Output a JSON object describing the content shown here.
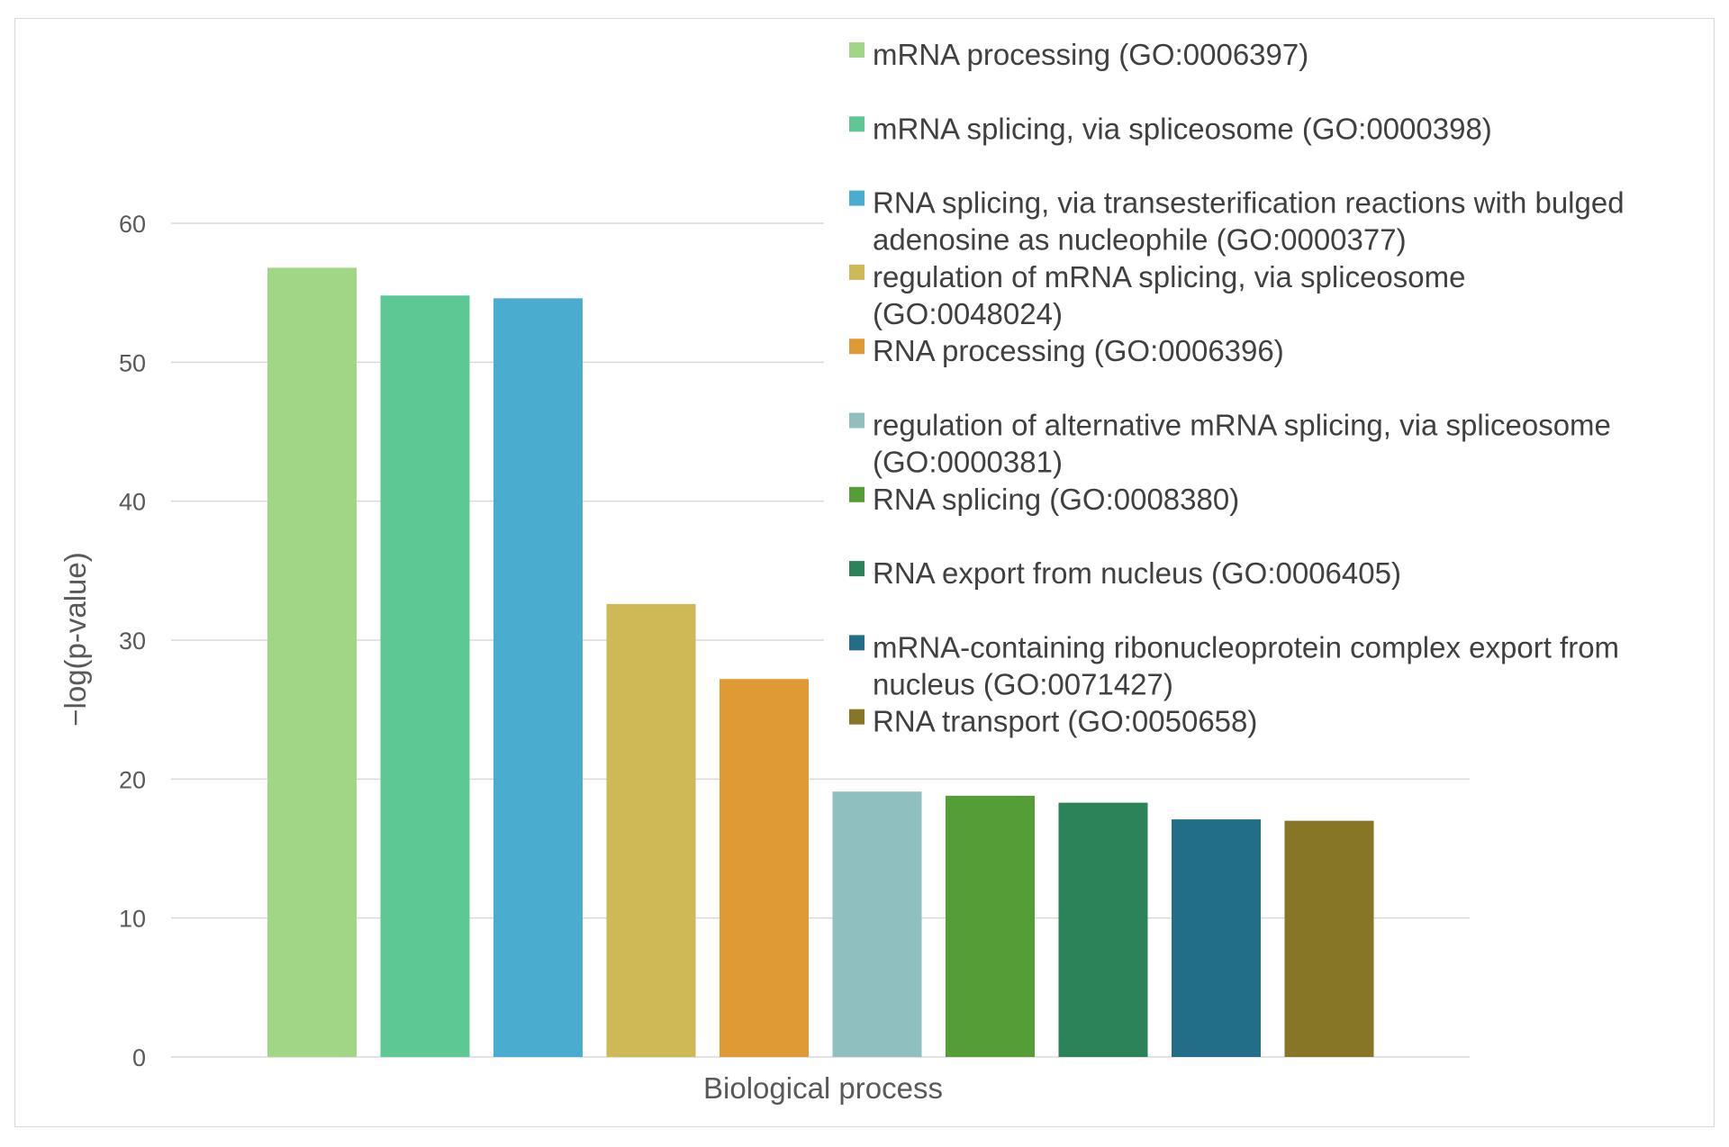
{
  "chart_data": {
    "type": "bar",
    "title": "",
    "xlabel": "Biological process",
    "ylabel": "−log(p-value)",
    "ylim": [
      0,
      60
    ],
    "yticks": [
      0,
      10,
      20,
      30,
      40,
      50,
      60
    ],
    "grid": true,
    "legend_position": "top-right",
    "series": [
      {
        "name": "mRNA processing (GO:0006397)",
        "value": 56.8,
        "color": "#a2d687"
      },
      {
        "name": "mRNA splicing, via spliceosome (GO:0000398)",
        "value": 54.8,
        "color": "#5ec895"
      },
      {
        "name": "RNA splicing, via transesterification reactions with bulged adenosine as nucleophile (GO:0000377)",
        "value": 54.6,
        "color": "#4aaccf"
      },
      {
        "name": "regulation of mRNA splicing, via spliceosome (GO:0048024)",
        "value": 32.6,
        "color": "#cfb957"
      },
      {
        "name": "RNA processing (GO:0006396)",
        "value": 27.2,
        "color": "#e09a35"
      },
      {
        "name": "regulation of alternative mRNA splicing,  via spliceosome (GO:0000381)",
        "value": 19.1,
        "color": "#8fbfbe"
      },
      {
        "name": "RNA splicing (GO:0008380)",
        "value": 18.8,
        "color": "#559d36"
      },
      {
        "name": "RNA export from nucleus (GO:0006405)",
        "value": 18.3,
        "color": "#2b8359"
      },
      {
        "name": "mRNA-containing ribonucleoprotein complex export from nucleus (GO:0071427)",
        "value": 17.1,
        "color": "#226e88"
      },
      {
        "name": "RNA transport (GO:0050658)",
        "value": 17.0,
        "color": "#877626"
      }
    ]
  },
  "legend_lines": [
    [
      "mRNA processing (GO:0006397)"
    ],
    [
      "mRNA splicing, via spliceosome (GO:0000398)"
    ],
    [
      "RNA splicing, via transesterification reactions with bulged",
      "adenosine as nucleophile (GO:0000377)"
    ],
    [
      "regulation of mRNA splicing, via spliceosome",
      "(GO:0048024)"
    ],
    [
      "RNA processing (GO:0006396)"
    ],
    [
      "regulation of alternative mRNA splicing,  via spliceosome",
      "(GO:0000381)"
    ],
    [
      "RNA splicing (GO:0008380)"
    ],
    [
      "RNA export from nucleus (GO:0006405)"
    ],
    [
      "mRNA-containing ribonucleoprotein complex export from",
      "nucleus (GO:0071427)"
    ],
    [
      "RNA transport (GO:0050658)"
    ]
  ]
}
